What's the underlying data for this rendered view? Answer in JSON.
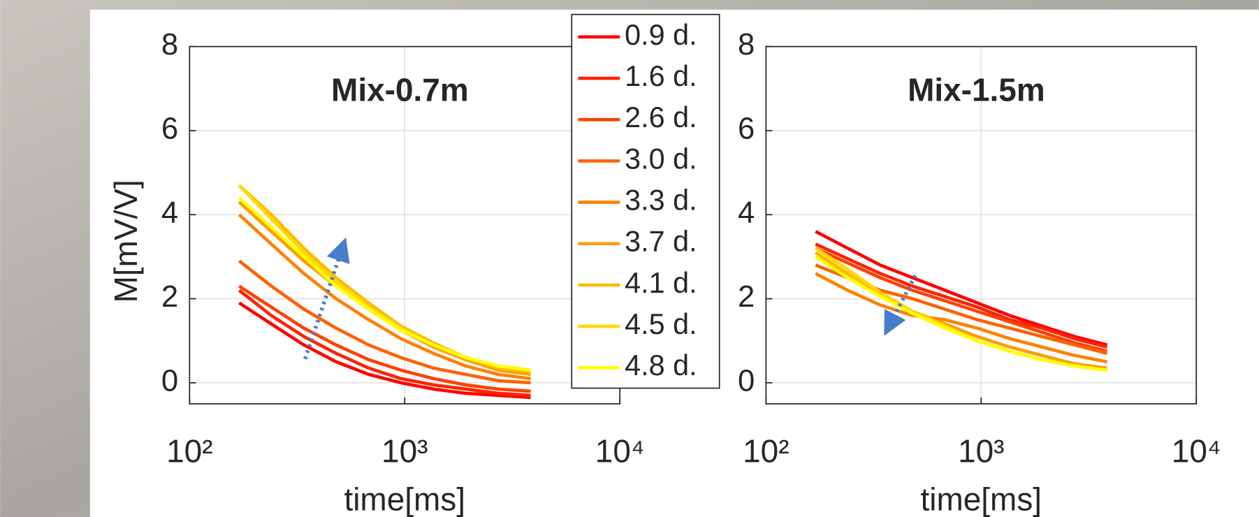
{
  "chart_data": [
    {
      "type": "line",
      "title": "Mix-0.7m",
      "xlabel": "time[ms]",
      "ylabel": "M[mV/V]",
      "log_x": true,
      "grid": true,
      "legend": "between",
      "x": [
        170,
        240,
        340,
        480,
        680,
        960,
        1360,
        1920,
        2720,
        3850
      ],
      "xlim": [
        100,
        10000
      ],
      "ylim": [
        -0.5,
        8
      ],
      "xticks": [
        {
          "value": 100,
          "label": "10²"
        },
        {
          "value": 1000,
          "label": "10³"
        },
        {
          "value": 10000,
          "label": "10⁴"
        }
      ],
      "yticks": [
        0,
        2,
        4,
        6,
        8
      ],
      "series": [
        {
          "name": "0.9 d.",
          "color": "#ff0000",
          "values": [
            1.9,
            1.4,
            0.9,
            0.5,
            0.2,
            0.0,
            -0.15,
            -0.25,
            -0.3,
            -0.35
          ]
        },
        {
          "name": "1.6 d.",
          "color": "#ff2200",
          "values": [
            2.2,
            1.6,
            1.1,
            0.7,
            0.35,
            0.1,
            -0.05,
            -0.15,
            -0.25,
            -0.3
          ]
        },
        {
          "name": "2.6 d.",
          "color": "#ff4000",
          "values": [
            2.3,
            1.8,
            1.3,
            0.9,
            0.55,
            0.3,
            0.1,
            -0.05,
            -0.15,
            -0.2
          ]
        },
        {
          "name": "3.0 d.",
          "color": "#ff6000",
          "values": [
            2.9,
            2.3,
            1.75,
            1.3,
            0.9,
            0.6,
            0.35,
            0.2,
            0.05,
            0.0
          ]
        },
        {
          "name": "3.3 d.",
          "color": "#ff8000",
          "values": [
            4.0,
            3.3,
            2.6,
            2.0,
            1.5,
            1.05,
            0.7,
            0.4,
            0.2,
            0.1
          ]
        },
        {
          "name": "3.7 d.",
          "color": "#ff9c00",
          "values": [
            4.3,
            3.6,
            2.9,
            2.3,
            1.75,
            1.25,
            0.85,
            0.55,
            0.3,
            0.2
          ]
        },
        {
          "name": "4.1 d.",
          "color": "#ffba00",
          "values": [
            4.7,
            4.0,
            3.2,
            2.5,
            1.9,
            1.35,
            0.95,
            0.6,
            0.35,
            0.25
          ]
        },
        {
          "name": "4.5 d.",
          "color": "#ffda00",
          "values": [
            4.7,
            3.9,
            3.1,
            2.4,
            1.8,
            1.3,
            0.9,
            0.6,
            0.4,
            0.3
          ]
        },
        {
          "name": "4.8 d.",
          "color": "#ffff00",
          "values": [
            4.4,
            3.7,
            3.0,
            2.3,
            1.75,
            1.25,
            0.9,
            0.6,
            0.4,
            0.3
          ]
        }
      ]
    },
    {
      "type": "line",
      "title": "Mix-1.5m",
      "xlabel": "time[ms]",
      "log_x": true,
      "grid": true,
      "x": [
        170,
        240,
        340,
        480,
        680,
        960,
        1360,
        1920,
        2720,
        3850
      ],
      "xlim": [
        100,
        10000
      ],
      "ylim": [
        -0.5,
        8
      ],
      "xticks": [
        {
          "value": 100,
          "label": "10²"
        },
        {
          "value": 1000,
          "label": "10³"
        },
        {
          "value": 10000,
          "label": "10⁴"
        }
      ],
      "yticks": [
        0,
        2,
        4,
        6,
        8
      ],
      "series": [
        {
          "color": "#ff0000",
          "values": [
            3.6,
            3.2,
            2.8,
            2.5,
            2.2,
            1.9,
            1.6,
            1.35,
            1.1,
            0.9
          ]
        },
        {
          "color": "#ff2200",
          "values": [
            3.3,
            2.95,
            2.6,
            2.3,
            2.05,
            1.8,
            1.5,
            1.3,
            1.05,
            0.85
          ]
        },
        {
          "color": "#ff4000",
          "values": [
            3.2,
            2.85,
            2.5,
            2.2,
            1.95,
            1.7,
            1.45,
            1.2,
            0.95,
            0.75
          ]
        },
        {
          "color": "#ff6000",
          "values": [
            2.8,
            2.5,
            2.2,
            2.0,
            1.75,
            1.5,
            1.3,
            1.1,
            0.9,
            0.7
          ]
        },
        {
          "color": "#ff8000",
          "values": [
            2.6,
            2.2,
            1.85,
            1.6,
            1.5,
            1.3,
            1.05,
            0.85,
            0.65,
            0.5
          ]
        },
        {
          "color": "#ff9c00",
          "values": [
            3.0,
            2.55,
            2.1,
            1.7,
            1.4,
            1.1,
            0.85,
            0.65,
            0.45,
            0.35
          ]
        },
        {
          "color": "#ffba00",
          "values": [
            3.1,
            2.6,
            2.1,
            1.65,
            1.3,
            1.0,
            0.75,
            0.55,
            0.4,
            0.3
          ]
        },
        {
          "color": "#ffda00",
          "values": [
            3.2,
            2.7,
            2.15,
            1.7,
            1.35,
            1.0,
            0.75,
            0.55,
            0.4,
            0.3
          ]
        },
        {
          "color": "#ffff00",
          "values": [
            3.0,
            2.5,
            2.05,
            1.65,
            1.3,
            1.0,
            0.75,
            0.55,
            0.4,
            0.3
          ]
        }
      ]
    }
  ]
}
